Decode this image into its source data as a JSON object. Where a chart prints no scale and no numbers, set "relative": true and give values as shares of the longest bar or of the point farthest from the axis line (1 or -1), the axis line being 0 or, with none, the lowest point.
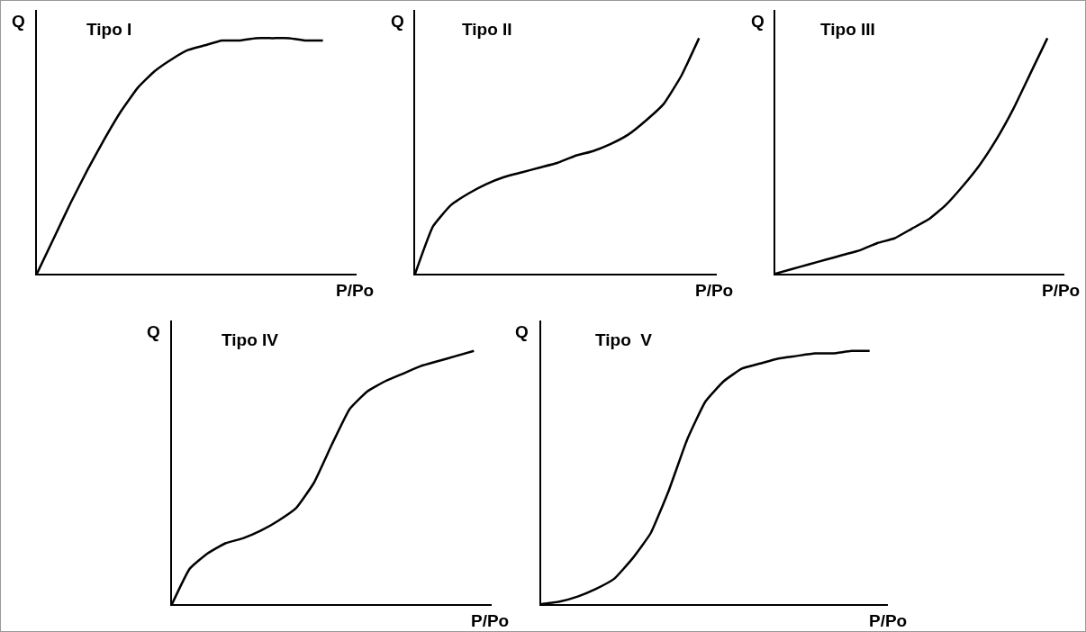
{
  "chart_data": [
    {
      "type": "line",
      "title": "Tipo I",
      "xlabel": "P/Po",
      "ylabel": "Q",
      "relative": true,
      "grid": false,
      "marker": "none",
      "line_style": "solid",
      "categories": [
        null,
        null,
        null,
        null,
        null,
        null,
        null,
        null,
        null,
        null,
        null,
        null,
        null,
        null,
        null,
        null,
        null,
        null,
        null,
        null
      ],
      "series": [
        {
          "color": "#000000",
          "values": [
            0,
            0.15,
            0.3,
            0.44,
            0.57,
            0.69,
            0.79,
            0.86,
            0.91,
            0.95,
            0.97,
            0.99,
            0.99,
            1,
            1,
            1,
            0.99,
            0.99,
            null,
            null
          ]
        }
      ]
    },
    {
      "type": "line",
      "title": "Tipo II",
      "xlabel": "P/Po",
      "ylabel": "Q",
      "relative": true,
      "grid": false,
      "marker": "none",
      "line_style": "solid",
      "categories": [
        null,
        null,
        null,
        null,
        null,
        null,
        null,
        null,
        null,
        null,
        null,
        null,
        null,
        null,
        null,
        null,
        null,
        null
      ],
      "series": [
        {
          "color": "#000000",
          "values": [
            0,
            0.2,
            0.29,
            0.34,
            0.38,
            0.41,
            0.43,
            0.45,
            0.47,
            0.5,
            0.52,
            0.55,
            0.59,
            0.65,
            0.72,
            0.84,
            1,
            null
          ]
        }
      ]
    },
    {
      "type": "line",
      "title": "Tipo III",
      "xlabel": "P/Po",
      "ylabel": "Q",
      "relative": true,
      "grid": false,
      "marker": "none",
      "line_style": "solid",
      "categories": [
        null,
        null,
        null,
        null,
        null,
        null,
        null,
        null,
        null,
        null,
        null,
        null,
        null,
        null,
        null,
        null,
        null,
        null
      ],
      "series": [
        {
          "color": "#000000",
          "values": [
            0,
            0.02,
            0.04,
            0.06,
            0.08,
            0.1,
            0.13,
            0.15,
            0.19,
            0.23,
            0.29,
            0.37,
            0.46,
            0.57,
            0.7,
            0.85,
            1,
            null
          ]
        }
      ]
    },
    {
      "type": "line",
      "title": "Tipo IV",
      "xlabel": "P/Po",
      "ylabel": "Q",
      "relative": true,
      "grid": false,
      "marker": "none",
      "line_style": "solid",
      "categories": [
        null,
        null,
        null,
        null,
        null,
        null,
        null,
        null,
        null,
        null,
        null,
        null,
        null,
        null,
        null,
        null,
        null,
        null,
        null
      ],
      "series": [
        {
          "color": "#000000",
          "values": [
            0,
            0.14,
            0.2,
            0.24,
            0.26,
            0.29,
            0.33,
            0.38,
            0.48,
            0.63,
            0.77,
            0.84,
            0.88,
            0.91,
            0.94,
            0.96,
            0.98,
            1,
            null
          ]
        }
      ]
    },
    {
      "type": "line",
      "title": "Tipo  V",
      "xlabel": "P/Po",
      "ylabel": "Q",
      "relative": true,
      "grid": false,
      "marker": "none",
      "line_style": "solid",
      "categories": [
        null,
        null,
        null,
        null,
        null,
        null,
        null,
        null,
        null,
        null,
        null,
        null,
        null,
        null,
        null,
        null,
        null,
        null,
        null,
        null
      ],
      "series": [
        {
          "color": "#000000",
          "values": [
            0,
            0.01,
            0.03,
            0.06,
            0.1,
            0.18,
            0.28,
            0.45,
            0.65,
            0.8,
            0.88,
            0.93,
            0.95,
            0.97,
            0.98,
            0.99,
            0.99,
            1,
            1,
            null
          ]
        }
      ]
    }
  ]
}
